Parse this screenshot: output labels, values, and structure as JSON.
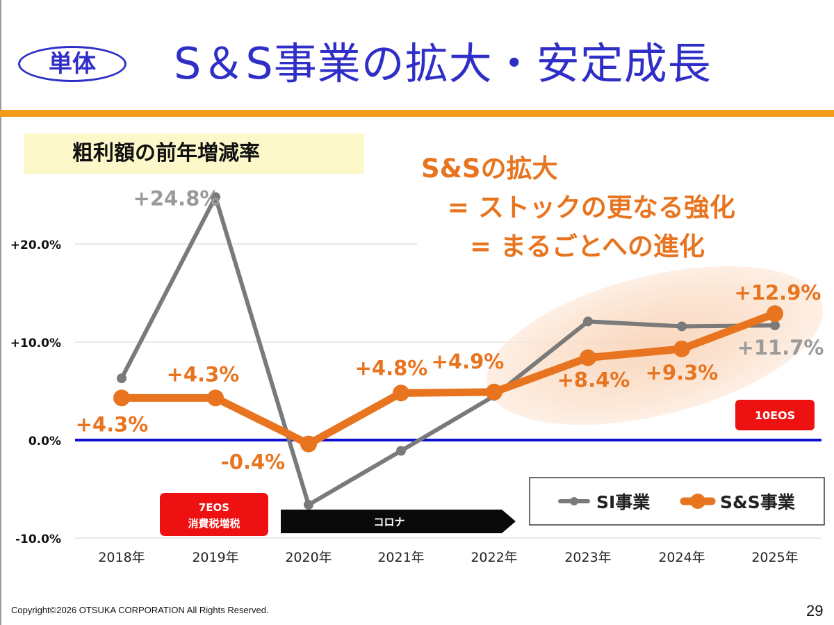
{
  "header": {
    "badge": "単体",
    "title": "S＆S事業の拡大・安定成長"
  },
  "chart_label": "粗利額の前年増減率",
  "tagline": {
    "line1": "S&Sの拡大",
    "line2": "= ストックの更なる強化",
    "line3": "= まるごとへの進化"
  },
  "chart_data": {
    "type": "line",
    "categories": [
      "2018年",
      "2019年",
      "2020年",
      "2021年",
      "2022年",
      "2023年",
      "2024年",
      "2025年"
    ],
    "y_ticks": [
      "+20.0%",
      "+10.0%",
      "0.0%",
      "-10.0%"
    ],
    "ylim": [
      -10,
      20
    ],
    "series": [
      {
        "name": "SI事業",
        "color": "#7a7a7a",
        "values": [
          6.3,
          24.8,
          -6.6,
          -1.1,
          4.5,
          12.1,
          11.6,
          11.7
        ],
        "labels": [
          "",
          "+24.8%",
          "",
          "",
          "",
          "",
          "",
          "+11.7%"
        ]
      },
      {
        "name": "S&S事業",
        "color": "#e8741f",
        "values": [
          4.3,
          4.3,
          -0.4,
          4.8,
          4.9,
          8.4,
          9.3,
          12.9
        ],
        "labels": [
          "+4.3%",
          "+4.3%",
          "-0.4%",
          "+4.8%",
          "+4.9%",
          "+8.4%",
          "+9.3%",
          "+12.9%"
        ]
      }
    ],
    "annotations": {
      "eos7_line1": "7EOS",
      "eos7_line2": "消費税増税",
      "corona": "コロナ",
      "eos10": "10EOS"
    },
    "legend_placement": "bottom-right"
  },
  "footer": {
    "copyright": "Copyright©2026 OTSUKA CORPORATION All Rights Reserved.",
    "page": "29"
  }
}
